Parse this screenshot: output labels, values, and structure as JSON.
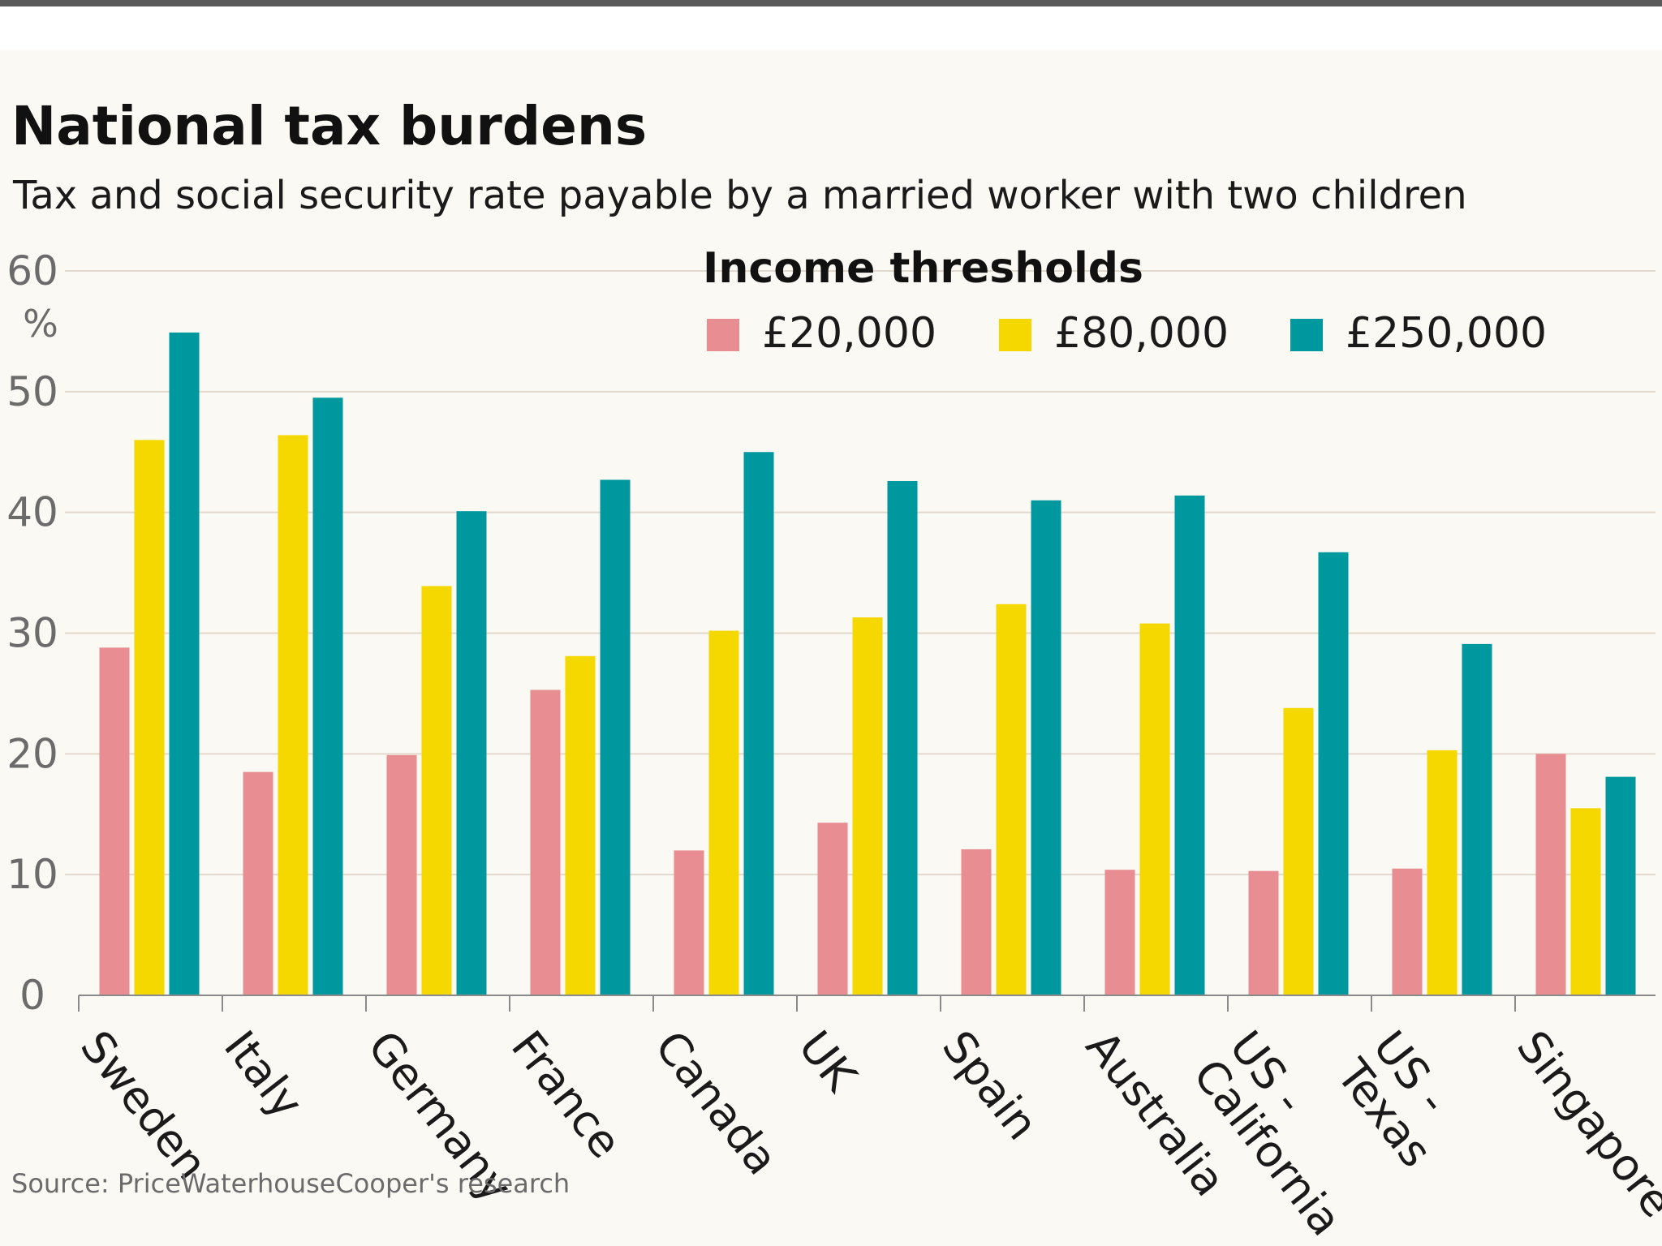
{
  "chart_data": {
    "type": "bar",
    "title": "National tax burdens",
    "subtitle": "Tax and social security rate payable by a married worker with two children",
    "ylabel": "%",
    "ylim": [
      0,
      60
    ],
    "yticks": [
      0,
      10,
      20,
      30,
      40,
      50,
      60
    ],
    "grid": true,
    "legend": {
      "title": "Income thresholds",
      "placement": "top-right"
    },
    "categories": [
      "Sweden",
      "Italy",
      "Germany",
      "France",
      "Canada",
      "UK",
      "Spain",
      "Australia",
      "US - California",
      "US - Texas",
      "Singapore"
    ],
    "category_lines": [
      [
        "Sweden"
      ],
      [
        "Italy"
      ],
      [
        "Germany"
      ],
      [
        "France"
      ],
      [
        "Canada"
      ],
      [
        "UK"
      ],
      [
        "Spain"
      ],
      [
        "Australia"
      ],
      [
        "US -",
        "California"
      ],
      [
        "US -",
        "Texas"
      ],
      [
        "Singapore"
      ]
    ],
    "series": [
      {
        "name": "£20,000",
        "color": "#e88d92",
        "values": [
          28.8,
          18.5,
          19.9,
          25.3,
          12.0,
          14.3,
          12.1,
          10.4,
          10.3,
          10.5,
          20.0
        ]
      },
      {
        "name": "£80,000",
        "color": "#f5d800",
        "values": [
          46.0,
          46.4,
          33.9,
          28.1,
          30.2,
          31.3,
          32.4,
          30.8,
          23.8,
          20.3,
          15.5
        ]
      },
      {
        "name": "£250,000",
        "color": "#00989f",
        "values": [
          54.9,
          49.5,
          40.1,
          42.7,
          45.0,
          42.6,
          41.0,
          41.4,
          36.7,
          29.1,
          18.1
        ]
      }
    ],
    "source": "Source: PriceWaterhouseCooper's research"
  }
}
